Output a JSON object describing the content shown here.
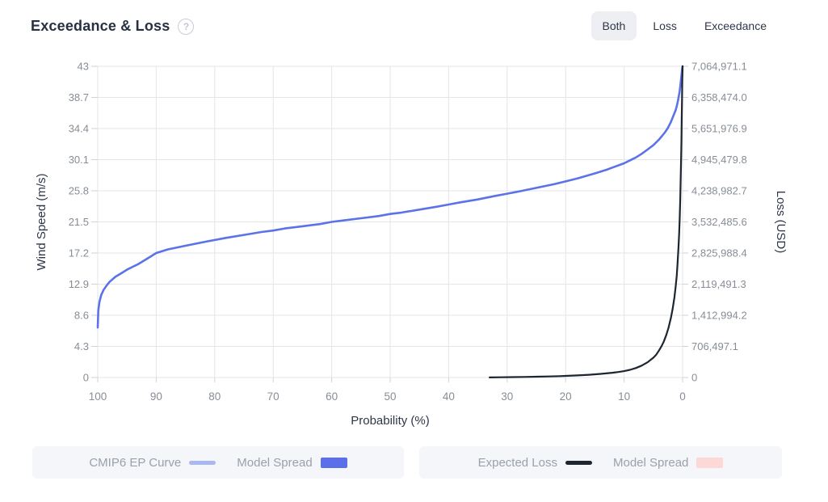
{
  "header": {
    "title": "Exceedance & Loss",
    "help_icon": "?",
    "toggle": {
      "options": [
        {
          "label": "Both",
          "active": true
        },
        {
          "label": "Loss",
          "active": false
        },
        {
          "label": "Exceedance",
          "active": false
        }
      ]
    }
  },
  "chart_data": {
    "type": "line",
    "title": "Exceedance & Loss",
    "xlabel": "Probability (%)",
    "x_axis_reversed": true,
    "grid": true,
    "x_ticks": [
      100,
      90,
      80,
      70,
      60,
      50,
      40,
      30,
      20,
      10,
      0
    ],
    "left_axis": {
      "label": "Wind Speed (m/s)",
      "min": 0,
      "max": 43,
      "ticks": [
        {
          "label": "43",
          "value": 43
        },
        {
          "label": "38.7",
          "value": 38.7
        },
        {
          "label": "34.4",
          "value": 34.4
        },
        {
          "label": "30.1",
          "value": 30.1
        },
        {
          "label": "25.8",
          "value": 25.8
        },
        {
          "label": "21.5",
          "value": 21.5
        },
        {
          "label": "17.2",
          "value": 17.2
        },
        {
          "label": "12.9",
          "value": 12.9
        },
        {
          "label": "8.6",
          "value": 8.6
        },
        {
          "label": "4.3",
          "value": 4.3
        },
        {
          "label": "0",
          "value": 0
        }
      ]
    },
    "right_axis": {
      "label": "Loss (USD)",
      "min": 0,
      "max": 7064971.1,
      "ticks": [
        {
          "label": "7,064,971.1",
          "value": 7064971.1
        },
        {
          "label": "6,358,474.0",
          "value": 6358474.0
        },
        {
          "label": "5,651,976.9",
          "value": 5651976.9
        },
        {
          "label": "4,945,479.8",
          "value": 4945479.8
        },
        {
          "label": "4,238,982.7",
          "value": 4238982.7
        },
        {
          "label": "3,532,485.6",
          "value": 3532485.6
        },
        {
          "label": "2,825,988.4",
          "value": 2825988.4
        },
        {
          "label": "2,119,491.3",
          "value": 2119491.3
        },
        {
          "label": "1,412,994.2",
          "value": 1412994.2
        },
        {
          "label": "706,497.1",
          "value": 706497.1
        },
        {
          "label": "0",
          "value": 0
        }
      ]
    },
    "series": [
      {
        "name": "CMIP6 EP Curve",
        "axis": "left",
        "color": "#5b72e8",
        "width": 2.6,
        "points": [
          [
            100,
            6.9
          ],
          [
            99.9,
            9.3
          ],
          [
            99.7,
            10.5
          ],
          [
            99.4,
            11.4
          ],
          [
            99,
            12.1
          ],
          [
            98.5,
            12.7
          ],
          [
            98,
            13.2
          ],
          [
            97,
            13.9
          ],
          [
            96,
            14.4
          ],
          [
            95,
            14.9
          ],
          [
            94,
            15.3
          ],
          [
            93,
            15.7
          ],
          [
            92,
            16.2
          ],
          [
            91,
            16.7
          ],
          [
            90,
            17.2
          ],
          [
            88,
            17.7
          ],
          [
            85,
            18.2
          ],
          [
            82,
            18.7
          ],
          [
            80,
            19.0
          ],
          [
            78,
            19.3
          ],
          [
            75,
            19.7
          ],
          [
            72,
            20.1
          ],
          [
            70,
            20.3
          ],
          [
            68,
            20.6
          ],
          [
            65,
            20.9
          ],
          [
            62,
            21.2
          ],
          [
            60,
            21.5
          ],
          [
            58,
            21.7
          ],
          [
            55,
            22.0
          ],
          [
            52,
            22.3
          ],
          [
            50,
            22.6
          ],
          [
            48,
            22.8
          ],
          [
            45,
            23.2
          ],
          [
            42,
            23.6
          ],
          [
            40,
            23.9
          ],
          [
            38,
            24.2
          ],
          [
            35,
            24.6
          ],
          [
            32,
            25.1
          ],
          [
            30,
            25.4
          ],
          [
            28,
            25.7
          ],
          [
            25,
            26.2
          ],
          [
            22,
            26.7
          ],
          [
            20,
            27.1
          ],
          [
            18,
            27.5
          ],
          [
            15,
            28.2
          ],
          [
            13,
            28.7
          ],
          [
            12,
            29.0
          ],
          [
            10,
            29.6
          ],
          [
            9,
            30.0
          ],
          [
            8,
            30.4
          ],
          [
            7,
            30.9
          ],
          [
            6,
            31.5
          ],
          [
            5,
            32.1
          ],
          [
            4.5,
            32.5
          ],
          [
            4,
            32.9
          ],
          [
            3.5,
            33.4
          ],
          [
            3,
            33.9
          ],
          [
            2.5,
            34.5
          ],
          [
            2,
            35.3
          ],
          [
            1.5,
            36.3
          ],
          [
            1.2,
            36.9
          ],
          [
            1,
            37.5
          ],
          [
            0.8,
            38.2
          ],
          [
            0.6,
            39.1
          ],
          [
            0.5,
            39.6
          ],
          [
            0.4,
            40.2
          ],
          [
            0.3,
            40.9
          ],
          [
            0.2,
            41.7
          ],
          [
            0.1,
            42.5
          ],
          [
            0.05,
            42.8
          ],
          [
            0,
            43
          ]
        ]
      },
      {
        "name": "Expected Loss",
        "axis": "right",
        "color": "#1d2531",
        "width": 2.2,
        "points": [
          [
            33,
            2000
          ],
          [
            31,
            5000
          ],
          [
            29,
            9000
          ],
          [
            27,
            13000
          ],
          [
            25,
            18000
          ],
          [
            23,
            24000
          ],
          [
            21,
            31000
          ],
          [
            20,
            36000
          ],
          [
            18,
            48000
          ],
          [
            16,
            62000
          ],
          [
            14,
            82000
          ],
          [
            12,
            108000
          ],
          [
            11,
            125000
          ],
          [
            10,
            145000
          ],
          [
            9,
            175000
          ],
          [
            8,
            215000
          ],
          [
            7,
            270000
          ],
          [
            6,
            345000
          ],
          [
            5,
            450000
          ],
          [
            4.5,
            520000
          ],
          [
            4,
            620000
          ],
          [
            3.6,
            710000
          ],
          [
            3.2,
            820000
          ],
          [
            2.8,
            960000
          ],
          [
            2.4,
            1130000
          ],
          [
            2,
            1350000
          ],
          [
            1.7,
            1560000
          ],
          [
            1.4,
            1820000
          ],
          [
            1.2,
            2040000
          ],
          [
            1,
            2320000
          ],
          [
            0.85,
            2600000
          ],
          [
            0.7,
            2950000
          ],
          [
            0.6,
            3250000
          ],
          [
            0.5,
            3600000
          ],
          [
            0.4,
            4050000
          ],
          [
            0.3,
            4650000
          ],
          [
            0.25,
            5000000
          ],
          [
            0.2,
            5400000
          ],
          [
            0.15,
            5850000
          ],
          [
            0.1,
            6300000
          ],
          [
            0.05,
            6750000
          ],
          [
            0.02,
            6950000
          ],
          [
            0,
            7064971.1
          ]
        ]
      }
    ],
    "style": {
      "grid_color": "#e4e5e9",
      "tick_mark_color": "#cfd2d8",
      "tick_label_color": "#878d96",
      "axis_title_color": "#2d3748"
    }
  },
  "legends": [
    {
      "items": [
        {
          "label": "CMIP6 EP Curve",
          "swatch": "line",
          "color": "#a9b8f3"
        },
        {
          "label": "Model Spread",
          "swatch": "rect",
          "color": "#5b6fe8"
        }
      ]
    },
    {
      "items": [
        {
          "label": "Expected Loss",
          "swatch": "line",
          "color": "#1d2531"
        },
        {
          "label": "Model Spread",
          "swatch": "rect",
          "color": "#fcd8d6"
        }
      ]
    }
  ]
}
